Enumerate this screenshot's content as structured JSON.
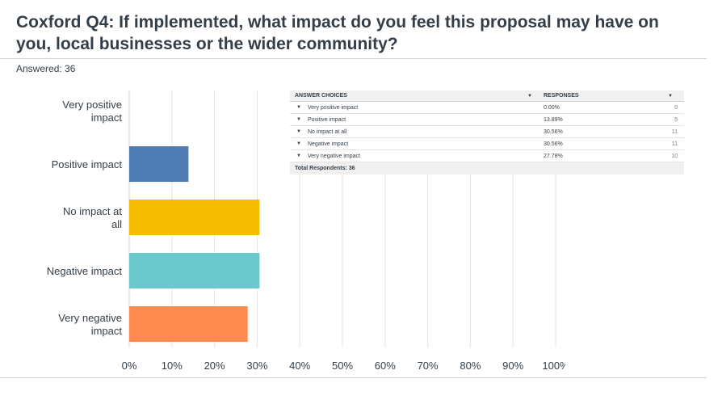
{
  "page": {
    "title": "Coxford Q4: If implemented, what impact do you feel this proposal may have on you, local businesses or the wider community?",
    "answered_label": "Answered: 36"
  },
  "chart_data": {
    "type": "bar",
    "orientation": "horizontal",
    "categories": [
      [
        "Very positive",
        "impact"
      ],
      [
        "Positive impact"
      ],
      [
        "No impact at",
        "all"
      ],
      [
        "Negative impact"
      ],
      [
        "Very negative",
        "impact"
      ]
    ],
    "values": [
      0.0,
      13.89,
      30.56,
      30.56,
      27.78
    ],
    "colors": [
      "#507cb6",
      "#507cb6",
      "#f7bd00",
      "#6bc8cd",
      "#ff8b4f"
    ],
    "xlim": [
      0,
      100
    ],
    "ticks": [
      "0%",
      "10%",
      "20%",
      "30%",
      "40%",
      "50%",
      "60%",
      "70%",
      "80%",
      "90%",
      "100%"
    ],
    "grid": true
  },
  "summary_table": {
    "headers": {
      "choices": "ANSWER CHOICES",
      "responses": "RESPONSES"
    },
    "sort_icon": "caret-down-icon",
    "rows": [
      {
        "choice": "Very positive impact",
        "percent": "0.00%",
        "count": "0"
      },
      {
        "choice": "Positive impact",
        "percent": "13.89%",
        "count": "5"
      },
      {
        "choice": "No impact at all",
        "percent": "30.56%",
        "count": "11"
      },
      {
        "choice": "Negative impact",
        "percent": "30.56%",
        "count": "11"
      },
      {
        "choice": "Very negative impact",
        "percent": "27.78%",
        "count": "10"
      }
    ],
    "total_label": "Total Respondents: 36"
  }
}
